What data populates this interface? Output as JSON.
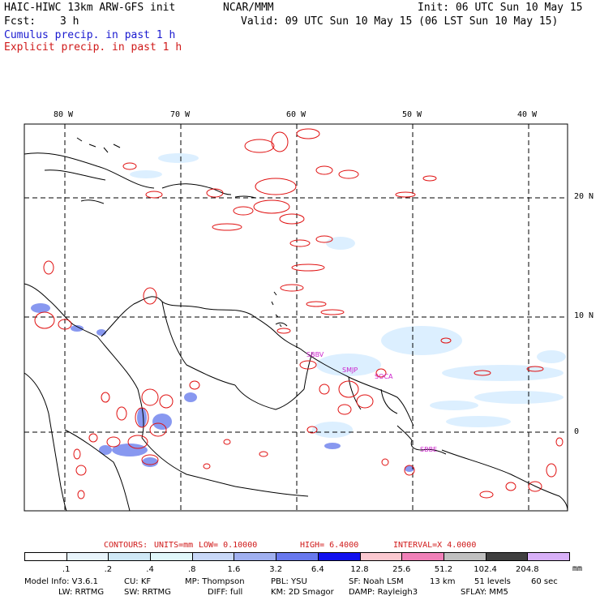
{
  "header": {
    "title_left": "HAIC-HIWC 13km ARW-GFS init",
    "org": "NCAR/MMM",
    "init": "Init: 06 UTC Sun 10 May 15",
    "fcst_label": "Fcst:",
    "fcst_value": "3 h",
    "valid": "Valid: 09 UTC Sun 10 May 15 (06 LST Sun 10 May 15)",
    "line_cumulus": "Cumulus precip. in past 1 h",
    "line_explicit": "Explicit precip. in past 1 h"
  },
  "map": {
    "lon_labels": [
      "80 W",
      "70 W",
      "60 W",
      "50 W",
      "40 W"
    ],
    "lat_labels": [
      "20 N",
      "10 N",
      "0"
    ],
    "stations": [
      "SBBV",
      "SMJP",
      "SOCA",
      "SBBE"
    ],
    "colors": {
      "cumulus": "#4a5ee8",
      "explicit": "#e01010",
      "coast": "#000000",
      "station": "#cc22cc"
    }
  },
  "contours": {
    "label": "CONTOURS:",
    "units": "UNITS=mm",
    "low": "LOW= 0.10000",
    "high": "HIGH= 6.4000",
    "interval": "INTERVAL=X 4.0000"
  },
  "colorbar": {
    "labels": [
      ".1",
      ".2",
      ".4",
      ".8",
      "1.6",
      "3.2",
      "6.4",
      "12.8",
      "25.6",
      "51.2",
      "102.4",
      "204.8"
    ],
    "units": "mm",
    "colors": [
      "#ffffff",
      "#e8f4fb",
      "#cfe8f6",
      "#e0f7fa",
      "#c8d8f8",
      "#a0b0f0",
      "#6878ee",
      "#1010ee",
      "#fbc8d0",
      "#f080b8",
      "#c0c0c0",
      "#404040",
      "#d8b0f8"
    ]
  },
  "model_info": {
    "line1": [
      "Model Info: V3.6.1",
      "CU: KF",
      "MP: Thompson",
      "PBL: YSU",
      "SF: Noah LSM",
      "13 km",
      "51 levels",
      "60 sec"
    ],
    "line2": [
      "LW: RRTMG",
      "SW: RRTMG",
      "DIFF: full",
      "KM: 2D Smagor",
      "DAMP: Rayleigh3",
      "SFLAY: MM5"
    ]
  }
}
